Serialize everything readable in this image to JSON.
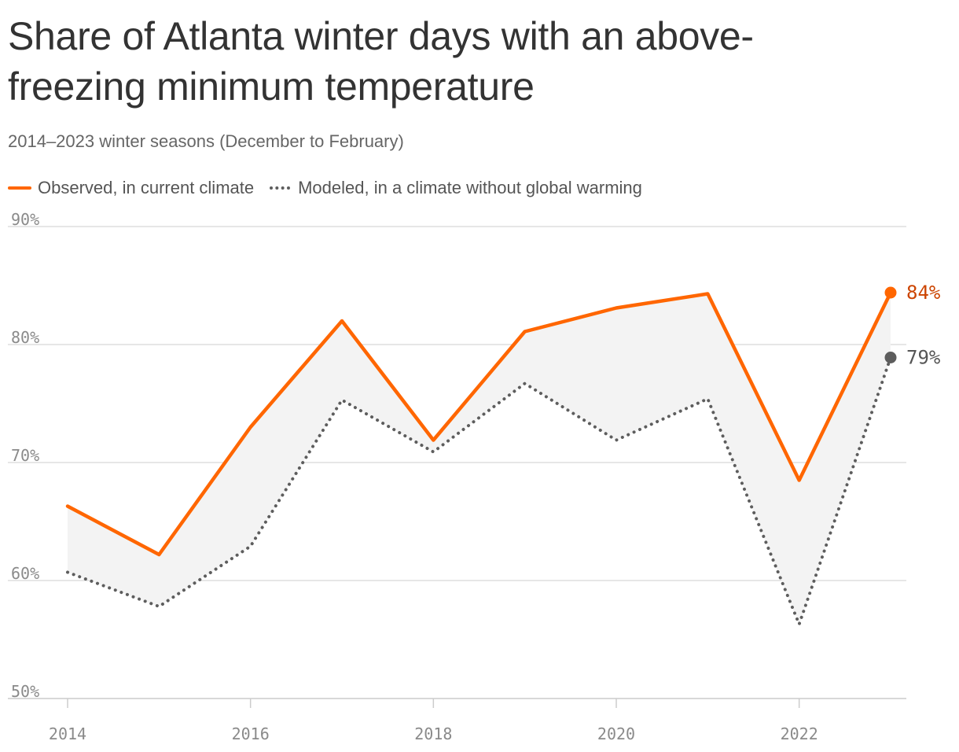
{
  "chart_data": {
    "type": "line",
    "title": "Share of Atlanta winter days with an above-freezing minimum temperature",
    "subtitle": "2014–2023 winter seasons (December to February)",
    "x": [
      2014,
      2015,
      2016,
      2017,
      2018,
      2019,
      2020,
      2021,
      2022,
      2023
    ],
    "x_ticks": [
      2014,
      2016,
      2018,
      2020,
      2022
    ],
    "x_tick_labels": [
      "2014",
      "2016",
      "2018",
      "2020",
      "2022"
    ],
    "y_ticks": [
      50,
      60,
      70,
      80,
      90
    ],
    "y_tick_labels": [
      "50%",
      "60%",
      "70%",
      "80%",
      "90%"
    ],
    "ylim": [
      50,
      90
    ],
    "xlim": [
      2014,
      2023
    ],
    "grid": true,
    "legend_position": "top-left",
    "shaded_between_series": true,
    "series": [
      {
        "name": "Observed, in current climate",
        "style": "solid",
        "color": "#ff6600",
        "values": [
          66.3,
          62.2,
          73.0,
          82.0,
          71.9,
          81.1,
          83.1,
          84.3,
          68.5,
          84.4
        ],
        "end_label": "84%",
        "end_label_color": "#cc4400"
      },
      {
        "name": "Modeled, in a climate without global warming",
        "style": "dotted",
        "color": "#5d5d5d",
        "values": [
          60.7,
          57.8,
          62.9,
          75.3,
          70.9,
          76.7,
          71.9,
          75.4,
          56.3,
          78.9
        ],
        "end_label": "79%",
        "end_label_color": "#555555"
      }
    ],
    "fill_color": "#f3f3f3",
    "grid_color": "#dddddd",
    "axis_color": "#cccccc"
  }
}
